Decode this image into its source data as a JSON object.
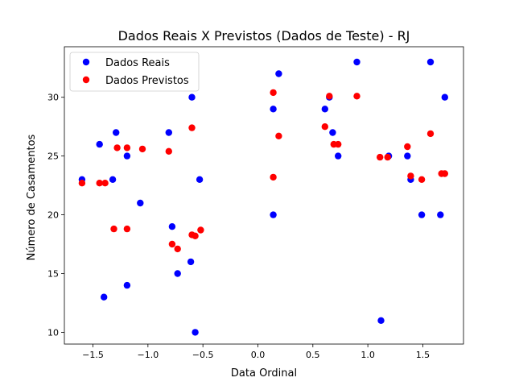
{
  "chart_data": {
    "type": "scatter",
    "title": "Dados Reais X Previstos (Dados de Teste) - RJ",
    "xlabel": "Data Ordinal",
    "ylabel": "Número de Casamentos",
    "xlim": [
      -1.76,
      1.87
    ],
    "ylim": [
      9.0,
      34.3
    ],
    "xticks": [
      -1.5,
      -1.0,
      -0.5,
      0.0,
      0.5,
      1.0,
      1.5
    ],
    "xtick_labels": [
      "−1.5",
      "−1.0",
      "−0.5",
      "0.0",
      "0.5",
      "1.0",
      "1.5"
    ],
    "yticks": [
      10,
      15,
      20,
      25,
      30
    ],
    "ytick_labels": [
      "10",
      "15",
      "20",
      "25",
      "30"
    ],
    "grid": false,
    "legend_position": "top-left",
    "series": [
      {
        "name": "Dados Reais",
        "color": "#0000ff",
        "points": [
          [
            -1.6,
            23.0
          ],
          [
            -1.44,
            26.0
          ],
          [
            -1.4,
            13.0
          ],
          [
            -1.32,
            23.0
          ],
          [
            -1.29,
            27.0
          ],
          [
            -1.19,
            25.0
          ],
          [
            -1.19,
            14.0
          ],
          [
            -1.07,
            21.0
          ],
          [
            -0.81,
            27.0
          ],
          [
            -0.78,
            19.0
          ],
          [
            -0.73,
            15.0
          ],
          [
            -0.6,
            30.0
          ],
          [
            -0.61,
            16.0
          ],
          [
            -0.57,
            10.0
          ],
          [
            -0.53,
            23.0
          ],
          [
            0.14,
            29.0
          ],
          [
            0.14,
            20.0
          ],
          [
            0.19,
            32.0
          ],
          [
            0.61,
            29.0
          ],
          [
            0.65,
            30.0
          ],
          [
            0.68,
            27.0
          ],
          [
            0.73,
            25.0
          ],
          [
            0.9,
            33.0
          ],
          [
            1.12,
            11.0
          ],
          [
            1.19,
            25.0
          ],
          [
            1.36,
            25.0
          ],
          [
            1.39,
            23.0
          ],
          [
            1.49,
            20.0
          ],
          [
            1.57,
            33.0
          ],
          [
            1.66,
            20.0
          ],
          [
            1.7,
            30.0
          ]
        ]
      },
      {
        "name": "Dados Previstos",
        "color": "#ff0000",
        "points": [
          [
            -1.6,
            22.7
          ],
          [
            -1.44,
            22.7
          ],
          [
            -1.39,
            22.7
          ],
          [
            -1.31,
            18.8
          ],
          [
            -1.28,
            25.7
          ],
          [
            -1.19,
            25.7
          ],
          [
            -1.19,
            18.8
          ],
          [
            -1.05,
            25.6
          ],
          [
            -0.81,
            25.4
          ],
          [
            -0.78,
            17.5
          ],
          [
            -0.73,
            17.1
          ],
          [
            -0.6,
            27.4
          ],
          [
            -0.6,
            18.3
          ],
          [
            -0.57,
            18.2
          ],
          [
            -0.52,
            18.7
          ],
          [
            0.14,
            30.4
          ],
          [
            0.14,
            23.2
          ],
          [
            0.19,
            26.7
          ],
          [
            0.61,
            27.5
          ],
          [
            0.65,
            30.1
          ],
          [
            0.69,
            26.0
          ],
          [
            0.73,
            26.0
          ],
          [
            0.9,
            30.1
          ],
          [
            1.11,
            24.9
          ],
          [
            1.18,
            24.9
          ],
          [
            1.36,
            25.8
          ],
          [
            1.39,
            23.3
          ],
          [
            1.49,
            23.0
          ],
          [
            1.57,
            26.9
          ],
          [
            1.67,
            23.5
          ],
          [
            1.7,
            23.5
          ]
        ]
      }
    ]
  }
}
